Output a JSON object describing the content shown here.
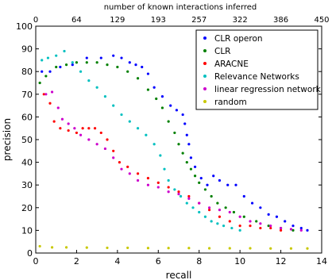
{
  "chart_data": {
    "type": "scatter",
    "xlabel": "recall",
    "ylabel": "precision",
    "top_xlabel": "number of known interactions inferred",
    "xlim": [
      0,
      14
    ],
    "ylim": [
      0,
      100
    ],
    "x_ticks": [
      "0",
      "2",
      "4",
      "6",
      "8",
      "10",
      "12",
      "14"
    ],
    "y_ticks": [
      "0",
      "10",
      "20",
      "30",
      "40",
      "50",
      "60",
      "70",
      "80",
      "90",
      "100"
    ],
    "top_ticks": [
      "0",
      "64",
      "129",
      "193",
      "257",
      "322",
      "386",
      "450"
    ],
    "legend_position": "top-right",
    "series": [
      {
        "name": "CLR operon",
        "color": "#0000ff",
        "points": [
          [
            0.3,
            80
          ],
          [
            0.7,
            80
          ],
          [
            1.2,
            82
          ],
          [
            1.8,
            83
          ],
          [
            2.5,
            86
          ],
          [
            3.2,
            86
          ],
          [
            3.8,
            87
          ],
          [
            4.2,
            86
          ],
          [
            4.6,
            84
          ],
          [
            4.9,
            83
          ],
          [
            5.2,
            82
          ],
          [
            5.5,
            79
          ],
          [
            5.8,
            73
          ],
          [
            6.2,
            69
          ],
          [
            6.6,
            65
          ],
          [
            6.9,
            63
          ],
          [
            7.2,
            61
          ],
          [
            7.3,
            57
          ],
          [
            7.4,
            52
          ],
          [
            7.5,
            48
          ],
          [
            7.6,
            42
          ],
          [
            7.8,
            38
          ],
          [
            8.1,
            33
          ],
          [
            8.4,
            30
          ],
          [
            8.7,
            34
          ],
          [
            9.0,
            32
          ],
          [
            9.4,
            30
          ],
          [
            9.8,
            30
          ],
          [
            10.2,
            25
          ],
          [
            10.6,
            22
          ],
          [
            11.0,
            20
          ],
          [
            11.4,
            17
          ],
          [
            11.8,
            16
          ],
          [
            12.2,
            14
          ],
          [
            12.6,
            12
          ],
          [
            13.0,
            11
          ],
          [
            13.3,
            10
          ]
        ]
      },
      {
        "name": "CLR",
        "color": "#008000",
        "points": [
          [
            0.2,
            75
          ],
          [
            0.5,
            78
          ],
          [
            1.0,
            82
          ],
          [
            1.5,
            83
          ],
          [
            2.0,
            84
          ],
          [
            2.5,
            84
          ],
          [
            3.0,
            84
          ],
          [
            3.5,
            83
          ],
          [
            4.0,
            82
          ],
          [
            4.5,
            80
          ],
          [
            5.0,
            77
          ],
          [
            5.5,
            72
          ],
          [
            5.9,
            68
          ],
          [
            6.2,
            64
          ],
          [
            6.5,
            58
          ],
          [
            6.8,
            53
          ],
          [
            7.0,
            48
          ],
          [
            7.2,
            44
          ],
          [
            7.4,
            40
          ],
          [
            7.6,
            37
          ],
          [
            7.8,
            34
          ],
          [
            8.0,
            31
          ],
          [
            8.3,
            28
          ],
          [
            8.6,
            25
          ],
          [
            8.9,
            22
          ],
          [
            9.3,
            20
          ],
          [
            9.7,
            18
          ],
          [
            10.2,
            16
          ],
          [
            10.8,
            14
          ],
          [
            11.4,
            12
          ],
          [
            12.0,
            11
          ],
          [
            12.6,
            10
          ]
        ]
      },
      {
        "name": "ARACNE",
        "color": "#ff0000",
        "points": [
          [
            0.4,
            70
          ],
          [
            0.7,
            66
          ],
          [
            0.9,
            58
          ],
          [
            1.2,
            55
          ],
          [
            1.6,
            54
          ],
          [
            2.0,
            53
          ],
          [
            2.3,
            55
          ],
          [
            2.6,
            55
          ],
          [
            2.9,
            55
          ],
          [
            3.2,
            53
          ],
          [
            3.5,
            50
          ],
          [
            3.8,
            45
          ],
          [
            4.1,
            40
          ],
          [
            4.5,
            38
          ],
          [
            5.0,
            35
          ],
          [
            5.5,
            33
          ],
          [
            6.0,
            31
          ],
          [
            6.5,
            29
          ],
          [
            7.0,
            27
          ],
          [
            7.5,
            25
          ],
          [
            8.0,
            22
          ],
          [
            8.5,
            19
          ],
          [
            9.0,
            16
          ],
          [
            9.5,
            14
          ],
          [
            10.0,
            12
          ],
          [
            10.5,
            12
          ],
          [
            11.0,
            11
          ],
          [
            11.5,
            11
          ],
          [
            12.0,
            10
          ]
        ]
      },
      {
        "name": "Relevance Networks",
        "color": "#00c0c0",
        "points": [
          [
            0.3,
            85
          ],
          [
            0.6,
            86
          ],
          [
            1.0,
            87
          ],
          [
            1.4,
            89
          ],
          [
            1.8,
            84
          ],
          [
            2.2,
            80
          ],
          [
            2.6,
            76
          ],
          [
            3.0,
            73
          ],
          [
            3.4,
            69
          ],
          [
            3.8,
            65
          ],
          [
            4.2,
            61
          ],
          [
            4.6,
            58
          ],
          [
            5.0,
            55
          ],
          [
            5.4,
            52
          ],
          [
            5.8,
            48
          ],
          [
            6.1,
            43
          ],
          [
            6.3,
            37
          ],
          [
            6.5,
            32
          ],
          [
            6.8,
            28
          ],
          [
            7.1,
            25
          ],
          [
            7.4,
            22
          ],
          [
            7.7,
            20
          ],
          [
            8.0,
            18
          ],
          [
            8.3,
            16
          ],
          [
            8.6,
            14
          ],
          [
            8.9,
            13
          ],
          [
            9.2,
            12
          ],
          [
            9.6,
            11
          ],
          [
            10.0,
            10
          ]
        ]
      },
      {
        "name": "linear regression network",
        "color": "#cc00cc",
        "points": [
          [
            0.5,
            70
          ],
          [
            0.8,
            71
          ],
          [
            1.1,
            64
          ],
          [
            1.3,
            59
          ],
          [
            1.6,
            57
          ],
          [
            1.9,
            55
          ],
          [
            2.2,
            52
          ],
          [
            2.6,
            50
          ],
          [
            3.0,
            48
          ],
          [
            3.4,
            46
          ],
          [
            3.8,
            42
          ],
          [
            4.2,
            37
          ],
          [
            4.6,
            35
          ],
          [
            5.0,
            32
          ],
          [
            5.5,
            30
          ],
          [
            6.0,
            29
          ],
          [
            6.5,
            27
          ],
          [
            7.0,
            26
          ],
          [
            7.5,
            24
          ],
          [
            8.0,
            22
          ],
          [
            8.5,
            20
          ],
          [
            9.0,
            19
          ],
          [
            9.5,
            18
          ],
          [
            10.0,
            16
          ],
          [
            10.5,
            14
          ],
          [
            11.0,
            13
          ],
          [
            11.5,
            12
          ],
          [
            12.0,
            11
          ],
          [
            12.5,
            10.5
          ],
          [
            13.0,
            10
          ]
        ]
      },
      {
        "name": "random",
        "color": "#c8c800",
        "points": [
          [
            0.2,
            3
          ],
          [
            0.8,
            2.5
          ],
          [
            1.5,
            2.5
          ],
          [
            2.5,
            2.4
          ],
          [
            3.5,
            2.3
          ],
          [
            4.5,
            2.3
          ],
          [
            5.5,
            2.2
          ],
          [
            6.5,
            2.2
          ],
          [
            7.5,
            2.2
          ],
          [
            8.5,
            2.1
          ],
          [
            9.5,
            2.1
          ],
          [
            10.5,
            2.1
          ],
          [
            11.5,
            2
          ],
          [
            12.5,
            2
          ],
          [
            13.3,
            2
          ]
        ]
      }
    ]
  }
}
